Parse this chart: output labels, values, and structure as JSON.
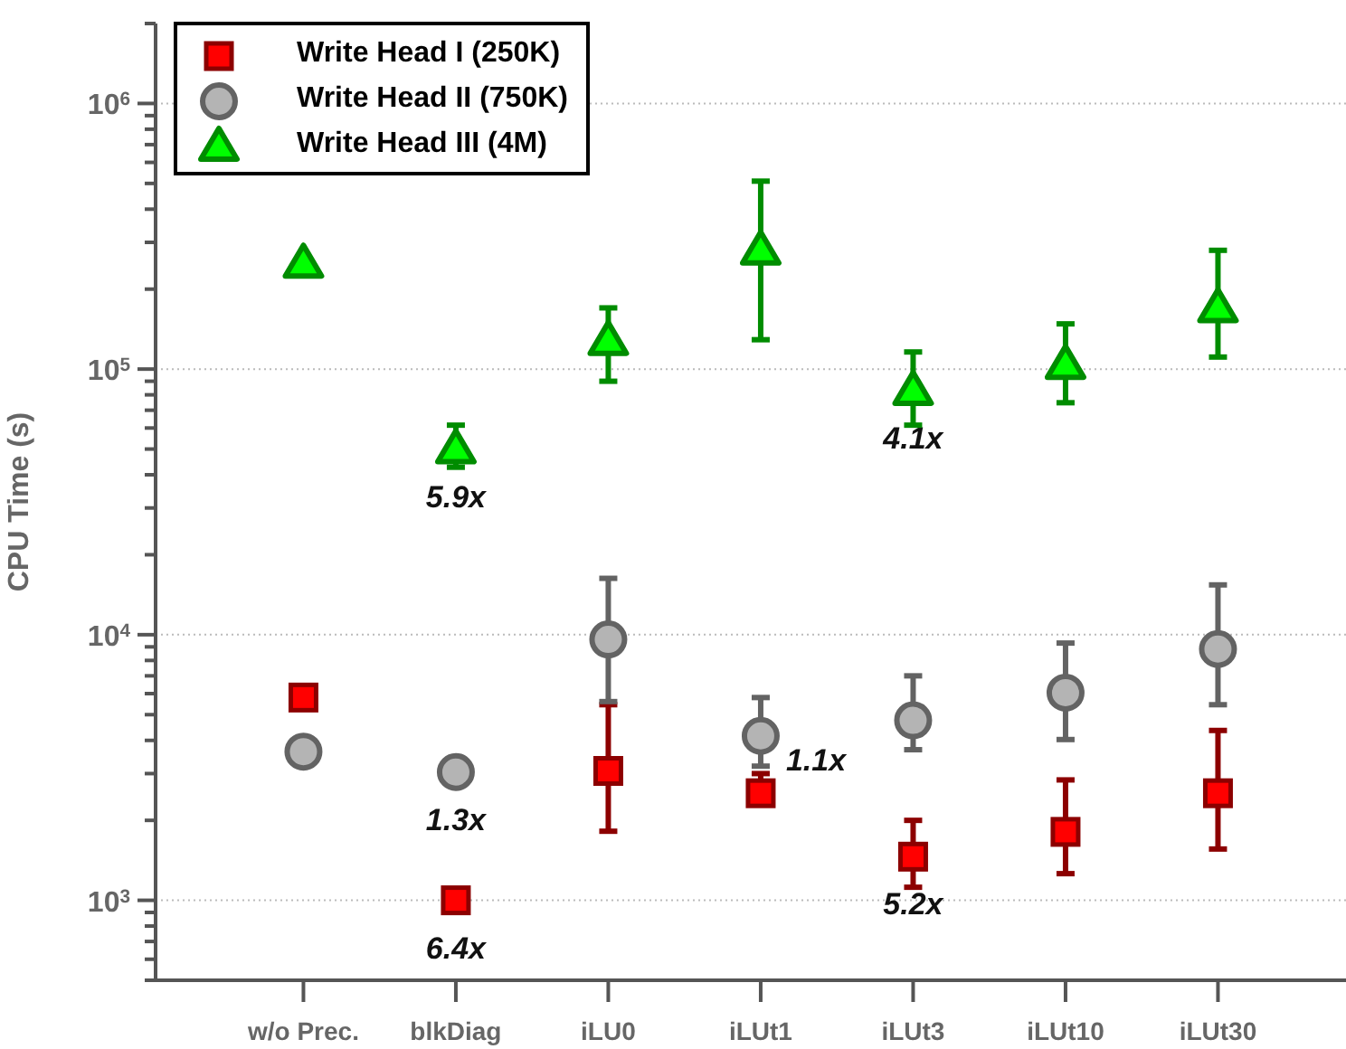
{
  "chart_data": {
    "type": "scatter",
    "ylabel": "CPU Time (s)",
    "log": "y",
    "grid": "y",
    "legend": "top left",
    "categories": [
      "w/o Prec.",
      "blkDiag",
      "iLU0",
      "iLUt1",
      "iLUt3",
      "iLUt10",
      "iLUt30"
    ],
    "ylim": [
      500,
      2000000
    ],
    "yticks": [
      {
        "value": 500,
        "label": null
      },
      {
        "value": 600,
        "label": null
      },
      {
        "value": 700,
        "label": null
      },
      {
        "value": 800,
        "label": null
      },
      {
        "value": 900,
        "label": null
      },
      {
        "value": 1000,
        "label": "10$^{3}$"
      },
      {
        "value": 2000,
        "label": null
      },
      {
        "value": 3000,
        "label": null
      },
      {
        "value": 4000,
        "label": null
      },
      {
        "value": 5000,
        "label": null
      },
      {
        "value": 6000,
        "label": null
      },
      {
        "value": 7000,
        "label": null
      },
      {
        "value": 8000,
        "label": null
      },
      {
        "value": 9000,
        "label": null
      },
      {
        "value": 10000,
        "label": "10$^{4}$"
      },
      {
        "value": 20000,
        "label": null
      },
      {
        "value": 30000,
        "label": null
      },
      {
        "value": 40000,
        "label": null
      },
      {
        "value": 50000,
        "label": null
      },
      {
        "value": 60000,
        "label": null
      },
      {
        "value": 70000,
        "label": null
      },
      {
        "value": 80000,
        "label": null
      },
      {
        "value": 90000,
        "label": null
      },
      {
        "value": 100000,
        "label": "10$^{5}$"
      },
      {
        "value": 200000,
        "label": null
      },
      {
        "value": 300000,
        "label": null
      },
      {
        "value": 400000,
        "label": null
      },
      {
        "value": 500000,
        "label": null
      },
      {
        "value": 600000,
        "label": null
      },
      {
        "value": 700000,
        "label": null
      },
      {
        "value": 800000,
        "label": null
      },
      {
        "value": 900000,
        "label": null
      },
      {
        "value": 1000000,
        "label": "10$^{6}$"
      },
      {
        "value": 2000000,
        "label": null
      }
    ],
    "series": [
      {
        "name": "Write Head I (250K)",
        "color": "#ff0000",
        "marker": "square",
        "values": [
          5800,
          1000,
          3070,
          2530,
          1460,
          1810,
          2530
        ],
        "errors": [
          null,
          null,
          [
            1820,
            5450
          ],
          [
            2300,
            3000
          ],
          [
            1120,
            2000
          ],
          [
            1260,
            2840
          ],
          [
            1560,
            4360
          ]
        ]
      },
      {
        "name": "Write Head II (750K)",
        "color": "#b4b4b4",
        "marker": "circle",
        "values": [
          3630,
          3040,
          9600,
          4160,
          4760,
          6050,
          8830
        ],
        "errors": [
          null,
          null,
          [
            5600,
            16300
          ],
          [
            3200,
            5800
          ],
          [
            3690,
            7000
          ],
          [
            4030,
            9300
          ],
          [
            5450,
            15400
          ]
        ]
      },
      {
        "name": "Write Head III (4M)",
        "color": "#00ff00",
        "marker": "triangle",
        "values": [
          250000,
          50000,
          128000,
          280000,
          83000,
          104000,
          170000
        ],
        "errors": [
          null,
          [
            42700,
            61500
          ],
          [
            90000,
            170000
          ],
          [
            129000,
            510000
          ],
          [
            61500,
            116000
          ],
          [
            74700,
            148000
          ],
          [
            111000,
            280000
          ]
        ]
      }
    ],
    "annotations": [
      {
        "text": "5.9x",
        "x": "blkDiag",
        "y": 50000
      },
      {
        "text": "4.1x",
        "x": "iLUt3",
        "y": 83000
      },
      {
        "text": "1.3x",
        "x": "blkDiag",
        "y": 3040
      },
      {
        "text": "6.4x",
        "x": "blkDiag",
        "y": 1000
      },
      {
        "text": "1.1x",
        "x": "iLUt1",
        "y": 4160
      },
      {
        "text": "5.2x",
        "x": "iLUt3",
        "y": 1460
      }
    ]
  }
}
